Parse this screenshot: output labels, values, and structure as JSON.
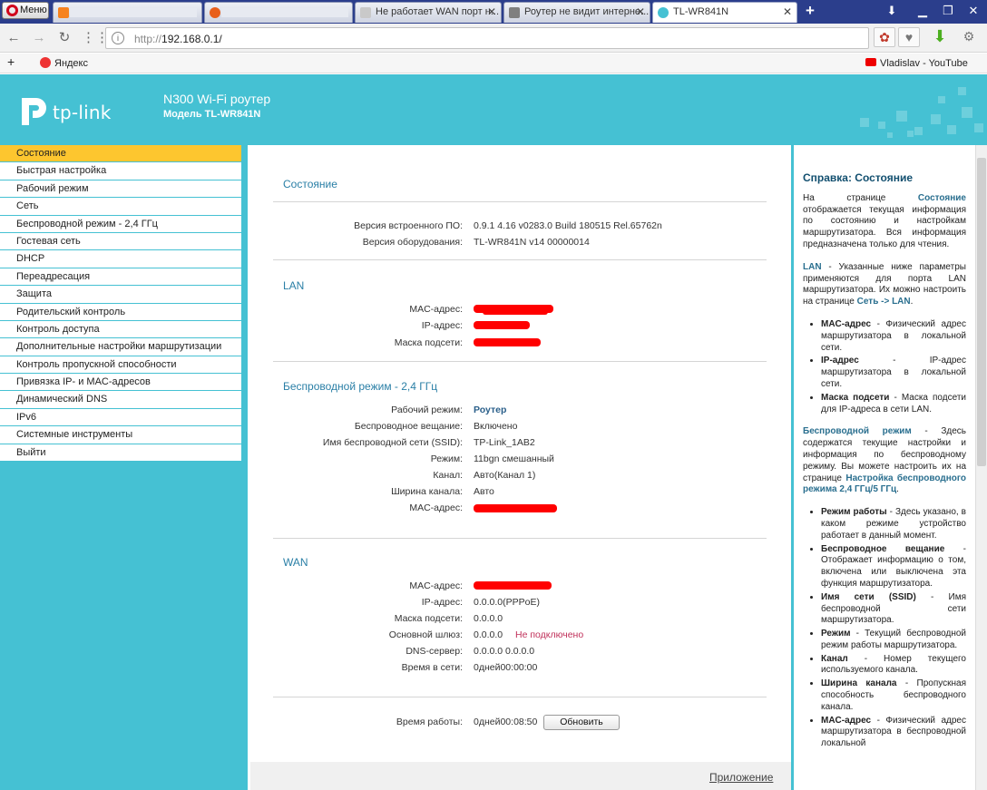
{
  "browser": {
    "menu_label": "Меню",
    "tabs": [
      {
        "title": "",
        "fav_color": "#f6821f"
      },
      {
        "title": "",
        "fav_color": "#e85f1b"
      },
      {
        "title": "Не работает WAN порт н...",
        "fav_color": "#c9c9c9"
      },
      {
        "title": "Роутер не видит интерне...",
        "fav_color": "#7f7f7f"
      },
      {
        "title": "TL-WR841N",
        "fav_color": "#45c1d3"
      }
    ],
    "url_proto": "http://",
    "url_host": "192.168.0.1/",
    "bookmarks": {
      "yandex": "Яндекс",
      "youtube": "Vladislav - YouTube"
    }
  },
  "router": {
    "brand": "tp-link",
    "product": "N300 Wi-Fi роутер",
    "model": "Модель TL-WR841N",
    "menu": [
      "Состояние",
      "Быстрая настройка",
      "Рабочий режим",
      "Сеть",
      "Беспроводной режим - 2,4 ГГц",
      "Гостевая сеть",
      "DHCP",
      "Переадресация",
      "Защита",
      "Родительский контроль",
      "Контроль доступа",
      "Дополнительные настройки маршрутизации",
      "Контроль пропускной способности",
      "Привязка IP- и MAC-адресов",
      "Динамический DNS",
      "IPv6",
      "Системные инструменты",
      "Выйти"
    ],
    "status": {
      "title": "Состояние",
      "firmware_label": "Версия встроенного ПО:",
      "firmware_value": "0.9.1 4.16 v0283.0 Build 180515 Rel.65762n",
      "hardware_label": "Версия оборудования:",
      "hardware_value": "TL-WR841N v14 00000014"
    },
    "lan": {
      "title": "LAN",
      "mac_label": "MAC-адрес:",
      "ip_label": "IP-адрес:",
      "mask_label": "Маска подсети:"
    },
    "wireless": {
      "title": "Беспроводной режим - 2,4 ГГц",
      "mode_label": "Рабочий режим:",
      "mode_value": "Роутер",
      "broadcast_label": "Беспроводное вещание:",
      "broadcast_value": "Включено",
      "ssid_label": "Имя беспроводной сети (SSID):",
      "ssid_value": "TP-Link_1AB2",
      "regime_label": "Режим:",
      "regime_value": "11bgn смешанный",
      "channel_label": "Канал:",
      "channel_value": "Авто(Канал 1)",
      "width_label": "Ширина канала:",
      "width_value": "Авто",
      "mac_label": "MAC-адрес:"
    },
    "wan": {
      "title": "WAN",
      "mac_label": "MAC-адрес:",
      "ip_label": "IP-адрес:",
      "ip_value": "0.0.0.0(PPPoE)",
      "mask_label": "Маска подсети:",
      "mask_value": "0.0.0.0",
      "gateway_label": "Основной шлюз:",
      "gateway_value": "0.0.0.0",
      "gateway_status": "Не подключено",
      "dns_label": "DNS-сервер:",
      "dns_value": "0.0.0.0 0.0.0.0",
      "online_label": "Время в сети:",
      "online_value": "0дней00:00:00"
    },
    "uptime_label": "Время работы:",
    "uptime_value": "0дней00:08:50",
    "refresh_button": "Обновить",
    "app_link": "Приложение"
  },
  "help": {
    "title": "Справка: Состояние",
    "p1_pre": "На странице ",
    "p1_key": "Состояние",
    "p1_post": " отображается текущая информация по состоянию и настройкам маршрутизатора. Вся информация предназначена только для чтения.",
    "lan_key": "LAN",
    "lan_text": " - Указанные ниже параметры применяются для порта LAN маршрутизатора. Их можно настроить на странице ",
    "lan_link": "Сеть -> LAN",
    "lan_items": [
      {
        "k": "MAC-адрес",
        "t": " - Физический адрес маршрутизатора в локальной сети."
      },
      {
        "k": "IP-адрес",
        "t": " - IP-адрес маршрутизатора в локальной сети."
      },
      {
        "k": "Маска подсети",
        "t": " - Маска подсети для IP-адреса в сети LAN."
      }
    ],
    "wl_key": "Беспроводной режим",
    "wl_text": " - Здесь содержатся текущие настройки и информация по беспроводному режиму. Вы можете настроить их на странице ",
    "wl_link": "Настройка беспроводного режима 2,4 ГГц/5 ГГц",
    "wl_items": [
      {
        "k": "Режим работы",
        "t": " - Здесь указано, в каком режиме устройство работает в данный момент."
      },
      {
        "k": "Беспроводное вещание",
        "t": " - Отображает информацию о том, включена или выключена эта функция маршрутизатора."
      },
      {
        "k": "Имя сети (SSID)",
        "t": " - Имя беспроводной сети маршрутизатора."
      },
      {
        "k": "Режим",
        "t": " - Текущий беспроводной режим работы маршрутизатора."
      },
      {
        "k": "Канал",
        "t": " - Номер текущего используемого канала."
      },
      {
        "k": "Ширина канала",
        "t": " - Пропускная способность беспроводного канала."
      },
      {
        "k": "MAC-адрес",
        "t": " - Физический адрес маршрутизатора в беспроводной локальной"
      }
    ]
  },
  "colors": {
    "brand_teal": "#45c1d3",
    "menu_selected": "#fdc62f",
    "title_blue": "#2a7fa6"
  }
}
